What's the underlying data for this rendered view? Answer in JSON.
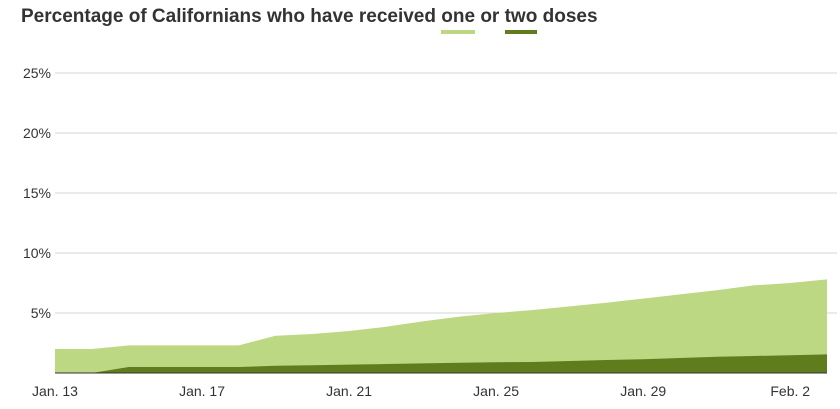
{
  "chart_data": {
    "type": "area",
    "title_parts": [
      "Percentage of Californians who have received",
      "one",
      "or",
      "two",
      "doses"
    ],
    "x": [
      "Jan. 13",
      "Jan. 14",
      "Jan. 15",
      "Jan. 16",
      "Jan. 17",
      "Jan. 18",
      "Jan. 19",
      "Jan. 20",
      "Jan. 21",
      "Jan. 22",
      "Jan. 23",
      "Jan. 24",
      "Jan. 25",
      "Jan. 26",
      "Jan. 27",
      "Jan. 28",
      "Jan. 29",
      "Jan. 30",
      "Jan. 31",
      "Feb. 1",
      "Feb. 2",
      "Feb. 3"
    ],
    "xtick_labels": [
      "Jan. 13",
      "Jan. 17",
      "Jan. 21",
      "Jan. 25",
      "Jan. 29",
      "Feb. 2"
    ],
    "series": [
      {
        "name": "one",
        "values": [
          2.0,
          2.0,
          2.3,
          2.3,
          2.3,
          2.3,
          3.1,
          3.25,
          3.5,
          3.85,
          4.3,
          4.7,
          5.0,
          5.25,
          5.55,
          5.85,
          6.2,
          6.55,
          6.9,
          7.3,
          7.5,
          7.8
        ],
        "color": "#bcd883"
      },
      {
        "name": "two",
        "values": [
          0.0,
          0.0,
          0.5,
          0.5,
          0.5,
          0.5,
          0.6,
          0.65,
          0.7,
          0.75,
          0.8,
          0.85,
          0.9,
          0.92,
          1.0,
          1.08,
          1.15,
          1.25,
          1.35,
          1.42,
          1.48,
          1.55
        ],
        "color": "#5f7d1d"
      }
    ],
    "yticks": [
      5,
      10,
      15,
      20,
      25
    ],
    "ytick_labels": [
      "5%",
      "10%",
      "15%",
      "20%",
      "25%"
    ],
    "ylim": [
      0,
      25
    ],
    "grid": true,
    "xlabel": "",
    "ylabel": ""
  }
}
